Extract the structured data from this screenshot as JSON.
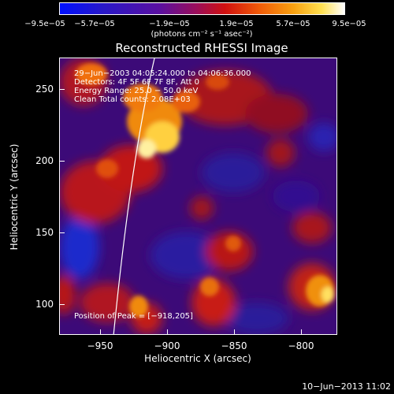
{
  "colorbar": {
    "tick_labels": [
      "−9.5e−05",
      "−5.7e−05",
      "−1.9e−05",
      "1.9e−05",
      "5.7e−05",
      "9.5e−05"
    ],
    "units": "(photons cm⁻² s⁻¹ asec⁻²)"
  },
  "plot": {
    "title": "Reconstructed RHESSI Image",
    "info_lines": [
      "29−Jun−2003 04:05:24.000 to 04:06:36.000",
      "Detectors: 4F 5F 6F 7F 8F, Att 0",
      "Energy Range: 25.0 − 50.0 keV",
      "Clean     Total counts: 2.08E+03"
    ],
    "peak_label": "Position of Peak = [−918,205]",
    "x_axis": {
      "label": "Heliocentric X (arcsec)",
      "ticks": [
        "−950",
        "−900",
        "−850",
        "−800"
      ],
      "range": [
        -976,
        -788
      ]
    },
    "y_axis": {
      "label": "Heliocentric Y (arcsec)",
      "ticks": [
        "100",
        "150",
        "200",
        "250"
      ],
      "range": [
        78,
        271
      ]
    }
  },
  "timestamp": "10−Jun−2013 11:02"
}
